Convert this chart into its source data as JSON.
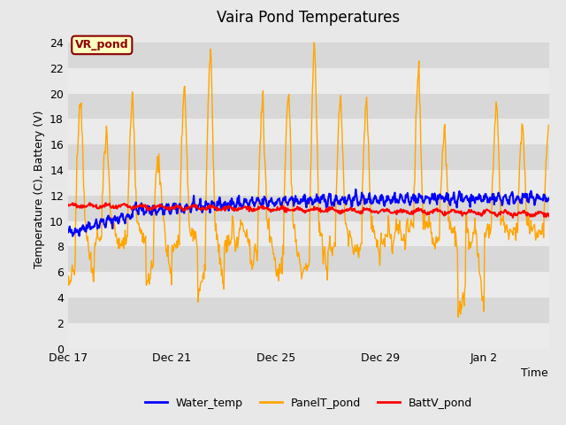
{
  "title": "Vaira Pond Temperatures",
  "ylabel": "Temperature (C), Battery (V)",
  "xlabel": "Time",
  "ylim": [
    0,
    25
  ],
  "yticks": [
    0,
    2,
    4,
    6,
    8,
    10,
    12,
    14,
    16,
    18,
    20,
    22,
    24
  ],
  "site_label": "VR_pond",
  "site_label_color": "#8B0000",
  "site_label_bg": "#FFFFC0",
  "bg_color": "#E8E8E8",
  "band_light": "#EBEBEB",
  "band_dark": "#D8D8D8",
  "water_color": "#0000FF",
  "panel_color": "#FFA500",
  "batt_color": "#FF0000",
  "legend_entries": [
    "Water_temp",
    "PanelT_pond",
    "BattV_pond"
  ],
  "x_tick_labels": [
    "Dec 17",
    "Dec 21",
    "Dec 25",
    "Dec 29",
    "Jan 2"
  ],
  "x_tick_positions": [
    0,
    4,
    8,
    12,
    16
  ],
  "n_days": 18.5,
  "n_points": 800
}
